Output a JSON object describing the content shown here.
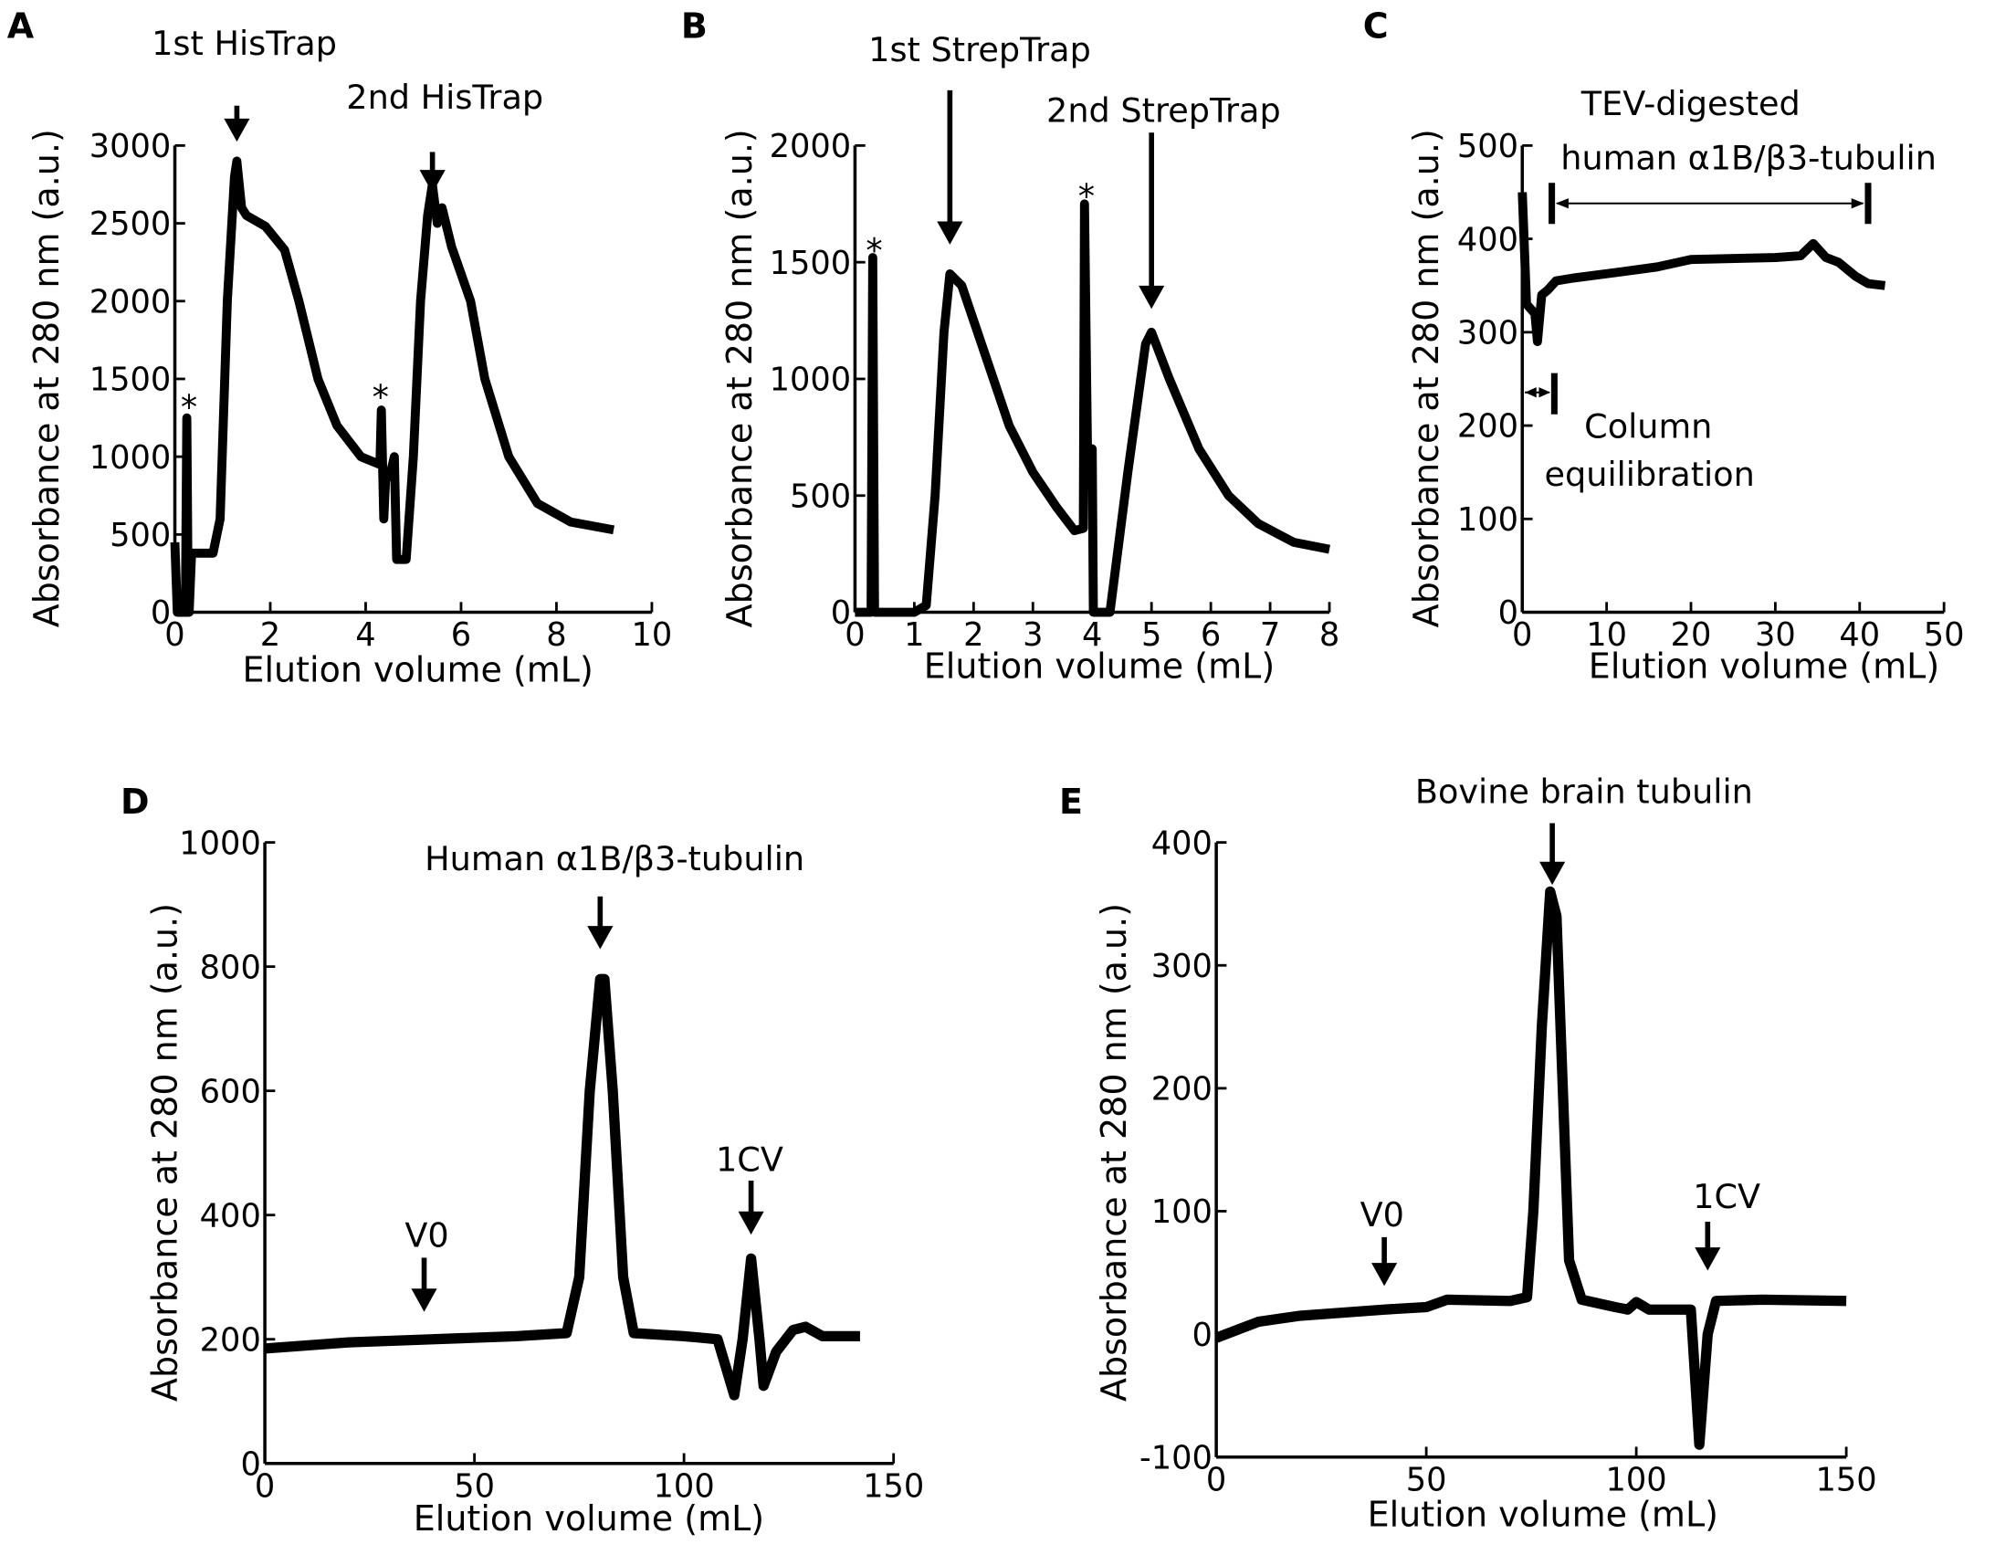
{
  "chart_data": [
    {
      "panel": "A",
      "type": "line",
      "xlabel": "Elution volume (mL)",
      "ylabel": "Absorbance at 280 nm (a.u.)",
      "xlim": [
        0,
        10
      ],
      "ylim": [
        0,
        3000
      ],
      "xticks": [
        "0",
        "2",
        "4",
        "6",
        "8",
        "10"
      ],
      "yticks": [
        "0",
        "500",
        "1000",
        "1500",
        "2000",
        "2500",
        "3000"
      ],
      "annotations": [
        "1st HisTrap",
        "2nd HisTrap",
        "*",
        "*"
      ],
      "x": [
        0,
        0.05,
        0.1,
        0.22,
        0.25,
        0.28,
        0.3,
        0.35,
        0.8,
        0.95,
        1.1,
        1.25,
        1.3,
        1.4,
        1.5,
        1.9,
        2.3,
        2.6,
        3.0,
        3.4,
        3.9,
        4.3,
        4.33,
        4.38,
        4.42,
        4.5,
        4.6,
        4.65,
        4.72,
        4.85,
        5.0,
        5.15,
        5.3,
        5.4,
        5.5,
        5.6,
        5.8,
        6.2,
        6.5,
        7.0,
        7.6,
        8.3,
        9.2
      ],
      "y": [
        450,
        0,
        0,
        0,
        1250,
        0,
        0,
        380,
        380,
        600,
        2000,
        2800,
        2900,
        2600,
        2550,
        2480,
        2330,
        2000,
        1500,
        1200,
        1000,
        950,
        1300,
        600,
        870,
        870,
        1000,
        340,
        340,
        340,
        1000,
        2000,
        2550,
        2750,
        2500,
        2600,
        2350,
        2000,
        1500,
        1000,
        700,
        580,
        530
      ]
    },
    {
      "panel": "B",
      "type": "line",
      "xlabel": "Elution volume (mL)",
      "ylabel": "Absorbance at 280 nm (a.u.)",
      "xlim": [
        0,
        8
      ],
      "ylim": [
        0,
        2000
      ],
      "xticks": [
        "0",
        "1",
        "2",
        "3",
        "4",
        "5",
        "6",
        "7",
        "8"
      ],
      "yticks": [
        "0",
        "500",
        "1000",
        "1500",
        "2000"
      ],
      "annotations": [
        "1st StrepTrap",
        "2nd StrepTrap",
        "*",
        "*"
      ],
      "x": [
        0,
        0.27,
        0.3,
        0.33,
        1.0,
        1.2,
        1.35,
        1.5,
        1.6,
        1.8,
        2.2,
        2.6,
        3.0,
        3.4,
        3.7,
        3.85,
        3.87,
        3.92,
        4.0,
        4.02,
        4.3,
        4.6,
        4.9,
        5.0,
        5.3,
        5.8,
        6.3,
        6.8,
        7.4,
        8.0
      ],
      "y": [
        0,
        0,
        1520,
        0,
        0,
        30,
        500,
        1200,
        1450,
        1400,
        1100,
        800,
        600,
        450,
        350,
        360,
        1750,
        700,
        700,
        0,
        0,
        600,
        1150,
        1200,
        1000,
        700,
        500,
        380,
        300,
        270
      ]
    },
    {
      "panel": "C",
      "type": "line",
      "xlabel": "Elution volume (mL)",
      "ylabel": "Absorbance at 280 nm (a.u.)",
      "xlim": [
        0,
        50
      ],
      "ylim": [
        0,
        500
      ],
      "xticks": [
        "0",
        "10",
        "20",
        "30",
        "40",
        "50"
      ],
      "yticks": [
        "0",
        "100",
        "200",
        "300",
        "400",
        "500"
      ],
      "annotations": [
        "TEV-digested",
        "human α1B/β3-tubulin",
        "Column",
        "equilibration"
      ],
      "x": [
        0,
        0.5,
        1.5,
        1.8,
        2.3,
        3,
        4,
        6,
        12,
        16,
        20,
        30,
        33,
        34.5,
        36,
        37.5,
        39.5,
        41,
        43
      ],
      "y": [
        450,
        330,
        320,
        290,
        340,
        345,
        355,
        358,
        365,
        370,
        378,
        380,
        382,
        395,
        380,
        375,
        360,
        352,
        350
      ]
    },
    {
      "panel": "D",
      "type": "line",
      "xlabel": "Elution volume (mL)",
      "ylabel": "Absorbance at 280 nm (a.u.)",
      "xlim": [
        0,
        150
      ],
      "ylim": [
        0,
        1000
      ],
      "xticks": [
        "0",
        "50",
        "100",
        "150"
      ],
      "yticks": [
        "0",
        "200",
        "400",
        "600",
        "800",
        "1000"
      ],
      "annotations": [
        "Human α1B/β3-tubulin",
        "V0",
        "1CV"
      ],
      "x": [
        0,
        20,
        40,
        60,
        72,
        75,
        77.5,
        80,
        81,
        83,
        85.5,
        88,
        100,
        108,
        112,
        114,
        116,
        118,
        119,
        122,
        126,
        129,
        133,
        142
      ],
      "y": [
        185,
        195,
        200,
        205,
        210,
        300,
        600,
        780,
        780,
        600,
        300,
        210,
        205,
        200,
        110,
        200,
        330,
        200,
        125,
        180,
        215,
        220,
        205,
        205
      ]
    },
    {
      "panel": "E",
      "type": "line",
      "xlabel": "Elution volume (mL)",
      "ylabel": "Absorbance at 280 nm (a.u.)",
      "xlim": [
        0,
        150
      ],
      "ylim": [
        -100,
        400
      ],
      "xticks": [
        "0",
        "50",
        "100",
        "150"
      ],
      "yticks": [
        "-100",
        "0",
        "100",
        "200",
        "300",
        "400"
      ],
      "annotations": [
        "Bovine brain tubulin",
        "V0",
        "1CV"
      ],
      "x": [
        0,
        10,
        20,
        40,
        50,
        55,
        70,
        74,
        75.5,
        77.5,
        79.5,
        81,
        82.5,
        84,
        87,
        95,
        98,
        100,
        103,
        113,
        115,
        117,
        119,
        130,
        150
      ],
      "y": [
        -3,
        10,
        15,
        20,
        22,
        28,
        27,
        30,
        100,
        250,
        360,
        340,
        200,
        60,
        28,
        22,
        20,
        26,
        20,
        20,
        -90,
        0,
        27,
        28,
        27
      ]
    }
  ]
}
